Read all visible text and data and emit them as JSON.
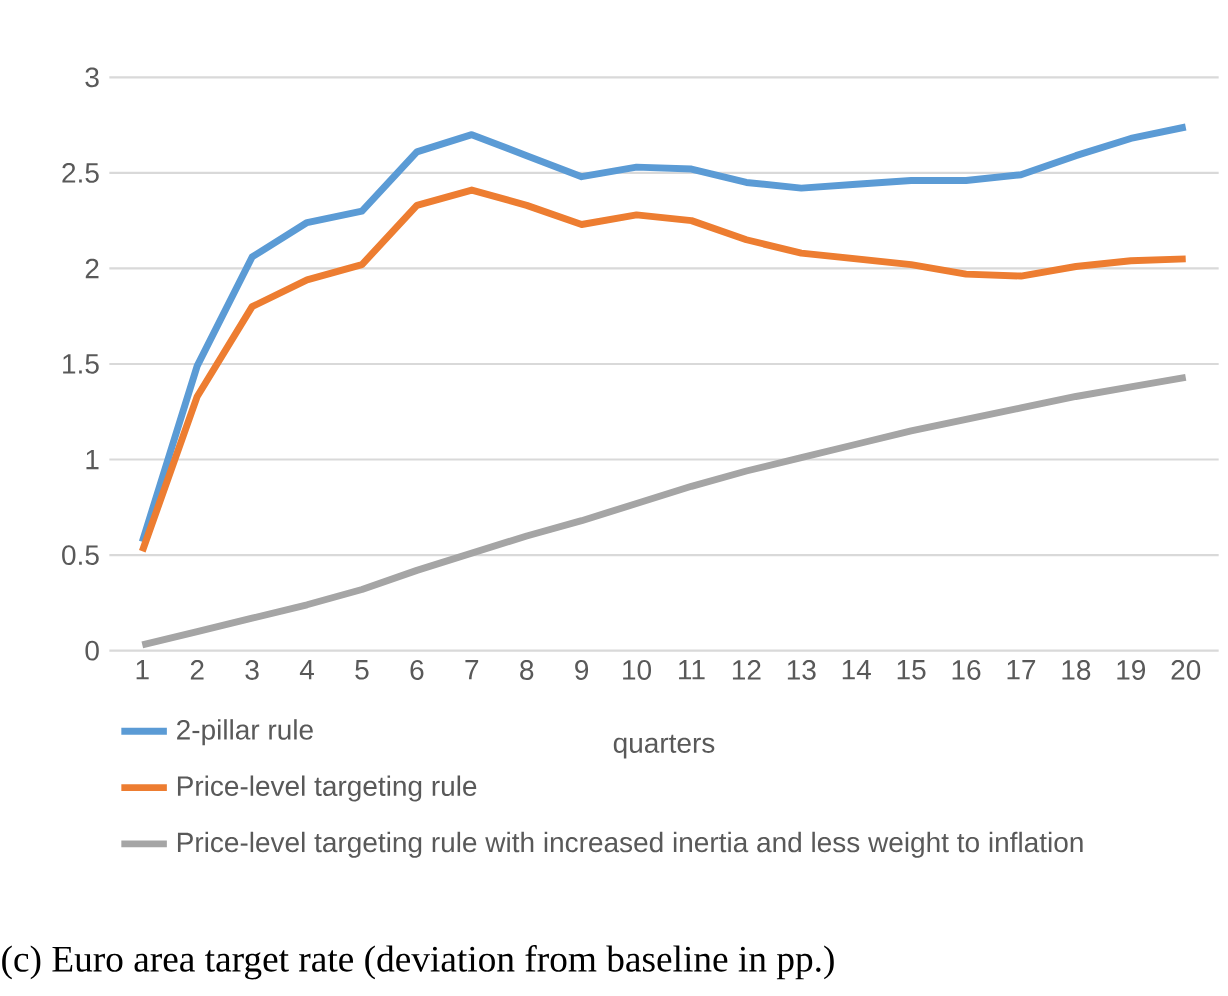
{
  "chart_data": {
    "type": "line",
    "xlabel": "quarters",
    "categories": [
      "1",
      "2",
      "3",
      "4",
      "5",
      "6",
      "7",
      "8",
      "9",
      "10",
      "11",
      "12",
      "13",
      "14",
      "15",
      "16",
      "17",
      "18",
      "19",
      "20"
    ],
    "series": [
      {
        "name": "2-pillar rule",
        "color": "#5b9bd5",
        "values": [
          0.57,
          1.49,
          2.06,
          2.24,
          2.3,
          2.61,
          2.7,
          2.59,
          2.48,
          2.53,
          2.52,
          2.45,
          2.42,
          2.44,
          2.46,
          2.46,
          2.49,
          2.59,
          2.68,
          2.74
        ]
      },
      {
        "name": "Price-level targeting rule",
        "color": "#ed7d31",
        "values": [
          0.52,
          1.33,
          1.8,
          1.94,
          2.02,
          2.33,
          2.41,
          2.33,
          2.23,
          2.28,
          2.25,
          2.15,
          2.08,
          2.05,
          2.02,
          1.97,
          1.96,
          2.01,
          2.04,
          2.05
        ]
      },
      {
        "name": "Price-level targeting rule with increased inertia and less weight to inflation",
        "color": "#a5a5a5",
        "values": [
          0.03,
          0.1,
          0.17,
          0.24,
          0.32,
          0.42,
          0.51,
          0.6,
          0.68,
          0.77,
          0.86,
          0.94,
          1.01,
          1.08,
          1.15,
          1.21,
          1.27,
          1.33,
          1.38,
          1.43
        ]
      }
    ],
    "ylim": [
      0,
      3
    ],
    "yticks": [
      0,
      0.5,
      1,
      1.5,
      2,
      2.5,
      3
    ],
    "grid": "y",
    "legend": "bottom",
    "marker": "none",
    "line_style": "solid",
    "annotations": [
      "(c) Euro area target rate (deviation from baseline in pp.)"
    ]
  }
}
